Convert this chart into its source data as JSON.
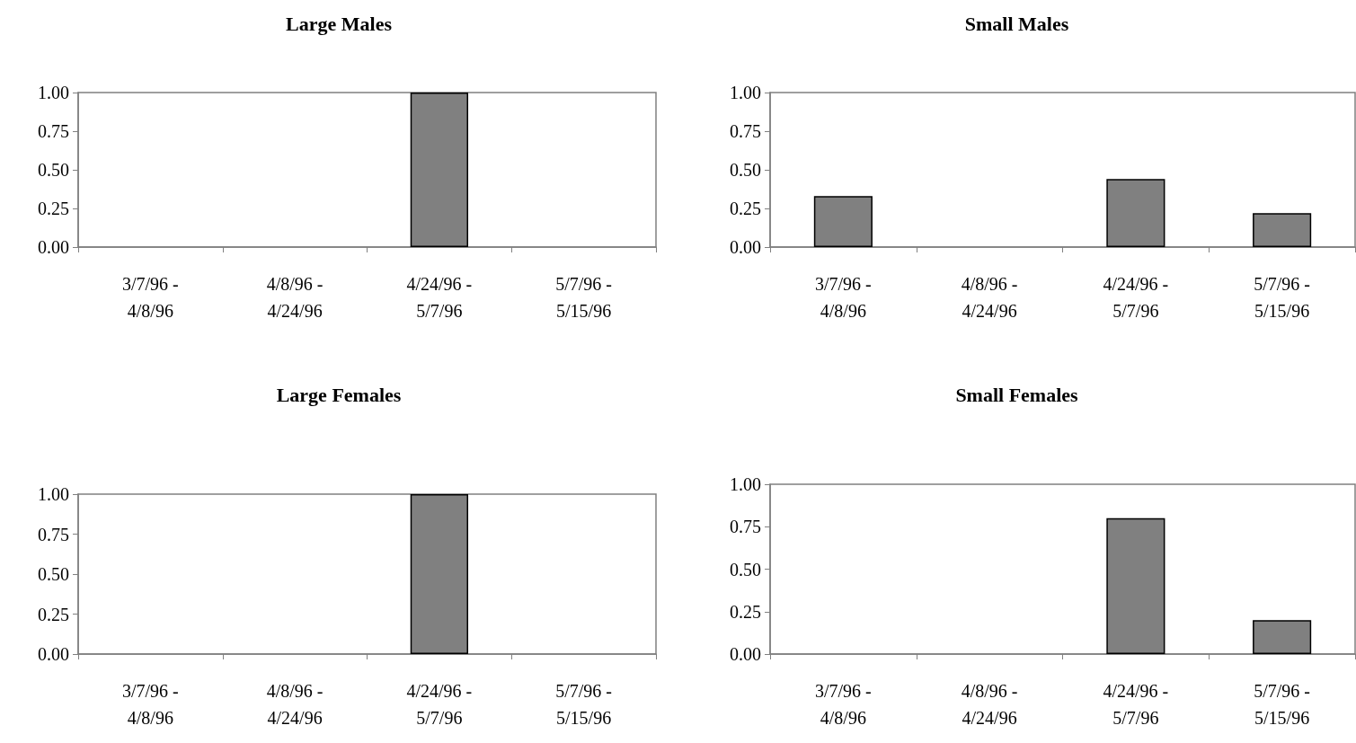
{
  "chart_data": [
    {
      "type": "bar",
      "title": "Large Males",
      "categories": [
        "3/7/96 -\n4/8/96",
        "4/8/96 -\n4/24/96",
        "4/24/96 -\n5/7/96",
        "5/7/96 -\n5/15/96"
      ],
      "values": [
        0,
        0,
        1.0,
        0
      ],
      "color": "#808080",
      "ylim": [
        0,
        1
      ],
      "yticks": [
        {
          "value": 0,
          "label": "0.00"
        },
        {
          "value": 0.25,
          "label": "0.25"
        },
        {
          "value": 0.5,
          "label": "0.50"
        },
        {
          "value": 0.75,
          "label": "0.75"
        },
        {
          "value": 1,
          "label": "1.00"
        }
      ],
      "grid": false
    },
    {
      "type": "bar",
      "title": "Small Males",
      "categories": [
        "3/7/96 -\n4/8/96",
        "4/8/96 -\n4/24/96",
        "4/24/96 -\n5/7/96",
        "5/7/96 -\n5/15/96"
      ],
      "values": [
        0.33,
        0,
        0.44,
        0.22
      ],
      "color": "#808080",
      "ylim": [
        0,
        1
      ],
      "yticks": [
        {
          "value": 0,
          "label": "0.00"
        },
        {
          "value": 0.25,
          "label": "0.25"
        },
        {
          "value": 0.5,
          "label": "0.50"
        },
        {
          "value": 0.75,
          "label": "0.75"
        },
        {
          "value": 1,
          "label": "1.00"
        }
      ],
      "grid": false
    },
    {
      "type": "bar",
      "title": "Large Females",
      "categories": [
        "3/7/96 -\n4/8/96",
        "4/8/96 -\n4/24/96",
        "4/24/96 -\n5/7/96",
        "5/7/96 -\n5/15/96"
      ],
      "values": [
        0,
        0,
        1.0,
        0
      ],
      "color": "#808080",
      "ylim": [
        0,
        1
      ],
      "yticks": [
        {
          "value": 0,
          "label": "0.00"
        },
        {
          "value": 0.25,
          "label": "0.25"
        },
        {
          "value": 0.5,
          "label": "0.50"
        },
        {
          "value": 0.75,
          "label": "0.75"
        },
        {
          "value": 1,
          "label": "1.00"
        }
      ],
      "grid": false
    },
    {
      "type": "bar",
      "title": "Small Females",
      "categories": [
        "3/7/96 -\n4/8/96",
        "4/8/96 -\n4/24/96",
        "4/24/96 -\n5/7/96",
        "5/7/96 -\n5/15/96"
      ],
      "values": [
        0,
        0,
        0.8,
        0.2
      ],
      "color": "#808080",
      "ylim": [
        0,
        1
      ],
      "yticks": [
        {
          "value": 0,
          "label": "0.00"
        },
        {
          "value": 0.25,
          "label": "0.25"
        },
        {
          "value": 0.5,
          "label": "0.50"
        },
        {
          "value": 0.75,
          "label": "0.75"
        },
        {
          "value": 1,
          "label": "1.00"
        }
      ],
      "grid": false
    }
  ]
}
